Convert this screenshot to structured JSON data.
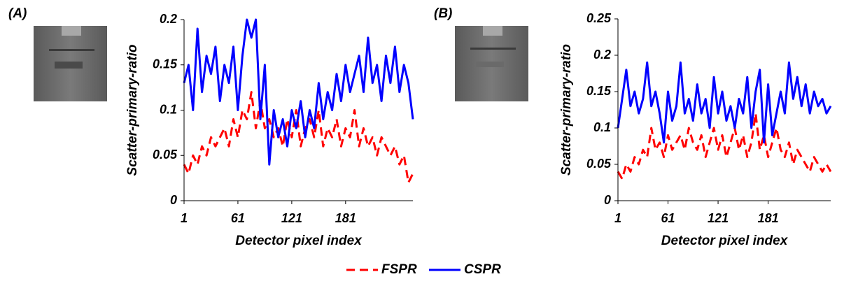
{
  "chart_data": [
    {
      "type": "line",
      "label": "(A)",
      "x_label": "Detector pixel index",
      "y_label": "Scatter-primary-ratio",
      "x": [
        1,
        6,
        11,
        16,
        21,
        26,
        31,
        36,
        41,
        46,
        51,
        56,
        61,
        66,
        71,
        76,
        81,
        86,
        91,
        96,
        101,
        106,
        111,
        116,
        121,
        126,
        131,
        136,
        141,
        146,
        151,
        156,
        161,
        166,
        171,
        176,
        181,
        186,
        191,
        196,
        201,
        206,
        211,
        216,
        221,
        226,
        231,
        236,
        241,
        246,
        251,
        256
      ],
      "xlim": [
        1,
        256
      ],
      "xticks": [
        1,
        61,
        121,
        181
      ],
      "ylim": [
        0,
        0.2
      ],
      "yticks": [
        0,
        0.05,
        0.1,
        0.15,
        0.2
      ],
      "series": [
        {
          "name": "FSPR",
          "color": "#ff0000",
          "style": "dashed",
          "values": [
            0.04,
            0.03,
            0.05,
            0.04,
            0.06,
            0.05,
            0.07,
            0.06,
            0.07,
            0.08,
            0.06,
            0.09,
            0.07,
            0.1,
            0.09,
            0.12,
            0.08,
            0.11,
            0.08,
            0.09,
            0.07,
            0.08,
            0.06,
            0.09,
            0.07,
            0.1,
            0.06,
            0.08,
            0.09,
            0.07,
            0.1,
            0.06,
            0.08,
            0.07,
            0.09,
            0.06,
            0.08,
            0.07,
            0.1,
            0.06,
            0.08,
            0.06,
            0.07,
            0.05,
            0.07,
            0.06,
            0.05,
            0.06,
            0.04,
            0.05,
            0.02,
            0.03
          ]
        },
        {
          "name": "CSPR",
          "color": "#0000ff",
          "style": "solid",
          "values": [
            0.13,
            0.15,
            0.1,
            0.19,
            0.12,
            0.16,
            0.14,
            0.17,
            0.11,
            0.15,
            0.13,
            0.17,
            0.1,
            0.16,
            0.2,
            0.18,
            0.2,
            0.09,
            0.15,
            0.04,
            0.1,
            0.07,
            0.09,
            0.06,
            0.1,
            0.08,
            0.11,
            0.07,
            0.1,
            0.08,
            0.13,
            0.09,
            0.12,
            0.1,
            0.14,
            0.11,
            0.15,
            0.12,
            0.14,
            0.16,
            0.12,
            0.18,
            0.13,
            0.15,
            0.11,
            0.16,
            0.13,
            0.17,
            0.12,
            0.15,
            0.13,
            0.09
          ]
        }
      ]
    },
    {
      "type": "line",
      "label": "(B)",
      "x_label": "Detector pixel index",
      "y_label": "Scatter-primary-ratio",
      "x": [
        1,
        6,
        11,
        16,
        21,
        26,
        31,
        36,
        41,
        46,
        51,
        56,
        61,
        66,
        71,
        76,
        81,
        86,
        91,
        96,
        101,
        106,
        111,
        116,
        121,
        126,
        131,
        136,
        141,
        146,
        151,
        156,
        161,
        166,
        171,
        176,
        181,
        186,
        191,
        196,
        201,
        206,
        211,
        216,
        221,
        226,
        231,
        236,
        241,
        246,
        251,
        256
      ],
      "xlim": [
        1,
        256
      ],
      "xticks": [
        1,
        61,
        121,
        181
      ],
      "ylim": [
        0,
        0.25
      ],
      "yticks": [
        0,
        0.05,
        0.1,
        0.15,
        0.2,
        0.25
      ],
      "series": [
        {
          "color": "#ff0000",
          "style": "dashed",
          "values": [
            0.04,
            0.03,
            0.05,
            0.04,
            0.06,
            0.05,
            0.07,
            0.06,
            0.1,
            0.07,
            0.08,
            0.06,
            0.09,
            0.07,
            0.08,
            0.09,
            0.07,
            0.1,
            0.08,
            0.07,
            0.09,
            0.06,
            0.08,
            0.1,
            0.07,
            0.09,
            0.06,
            0.08,
            0.1,
            0.07,
            0.09,
            0.06,
            0.08,
            0.12,
            0.07,
            0.09,
            0.06,
            0.08,
            0.1,
            0.07,
            0.06,
            0.08,
            0.05,
            0.07,
            0.06,
            0.05,
            0.04,
            0.06,
            0.05,
            0.04,
            0.05,
            0.04
          ]
        },
        {
          "color": "#0000ff",
          "style": "solid",
          "values": [
            0.1,
            0.14,
            0.18,
            0.13,
            0.15,
            0.12,
            0.14,
            0.19,
            0.13,
            0.15,
            0.12,
            0.08,
            0.15,
            0.11,
            0.13,
            0.19,
            0.12,
            0.14,
            0.11,
            0.16,
            0.12,
            0.14,
            0.1,
            0.17,
            0.12,
            0.15,
            0.11,
            0.13,
            0.1,
            0.14,
            0.12,
            0.17,
            0.1,
            0.15,
            0.18,
            0.08,
            0.16,
            0.09,
            0.12,
            0.15,
            0.12,
            0.19,
            0.14,
            0.17,
            0.13,
            0.16,
            0.12,
            0.15,
            0.13,
            0.14,
            0.12,
            0.13
          ]
        }
      ]
    }
  ]
}
